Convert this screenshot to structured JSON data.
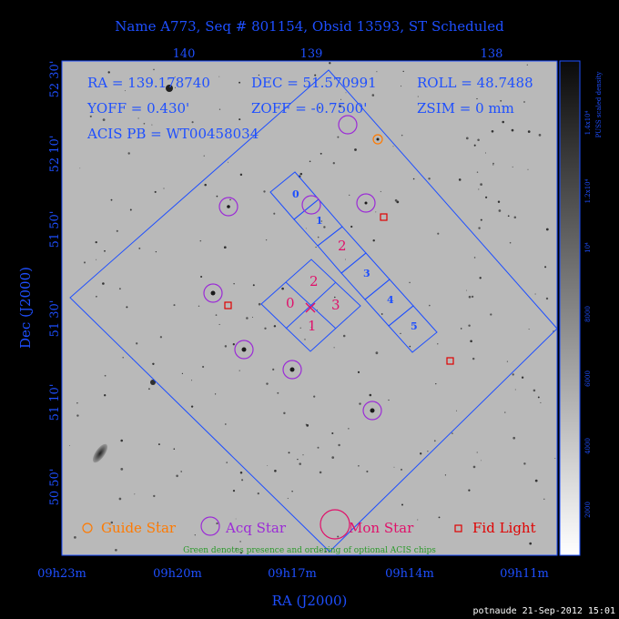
{
  "title": "Name A773, Seq # 801154, Obsid 13593, ST Scheduled",
  "info": {
    "ra": "RA = 139.178740",
    "dec": "DEC = 51.570991",
    "roll": "ROLL = 48.7488",
    "yoff": "YOFF = 0.430'",
    "zoff": "ZOFF = -0.7500'",
    "zsim": "ZSIM = 0 mm",
    "acis_pb": "ACIS PB = WT00458034"
  },
  "top_axis": {
    "ticks": [
      "140",
      "139",
      "138"
    ]
  },
  "left_axis": {
    "label": "Dec (J2000)",
    "ticks": [
      "52 30'",
      "52 10'",
      "51 50'",
      "51 30'",
      "51 10'",
      "50 50'"
    ]
  },
  "bottom_axis": {
    "label": "RA (J2000)",
    "ticks": [
      "09h23m",
      "09h20m",
      "09h17m",
      "09h14m",
      "09h11m"
    ]
  },
  "colorbar": {
    "label": "PUSS scaled density",
    "ticks": [
      "1.4x10⁴",
      "1.2x10⁴",
      "10⁴",
      "8000",
      "6000",
      "4000",
      "2000"
    ]
  },
  "chips": {
    "left": [
      "0",
      "2",
      "3",
      "1"
    ],
    "strip": [
      "0",
      "1",
      "2",
      "3",
      "4",
      "5"
    ]
  },
  "legend": {
    "guide": "Guide Star",
    "acq": "Acq Star",
    "mon": "Mon Star",
    "fid": "Fid Light",
    "note": "Green denotes presence and ordering of optional ACIS chips"
  },
  "footer": "potnaude 21-Sep-2012 15:01",
  "colors": {
    "blue": "#1e4fff",
    "magenta": "#e0106a",
    "purple": "#9b2bd6",
    "orange": "#ff7a00",
    "red": "#e00000",
    "green": "#2a9a2a"
  }
}
